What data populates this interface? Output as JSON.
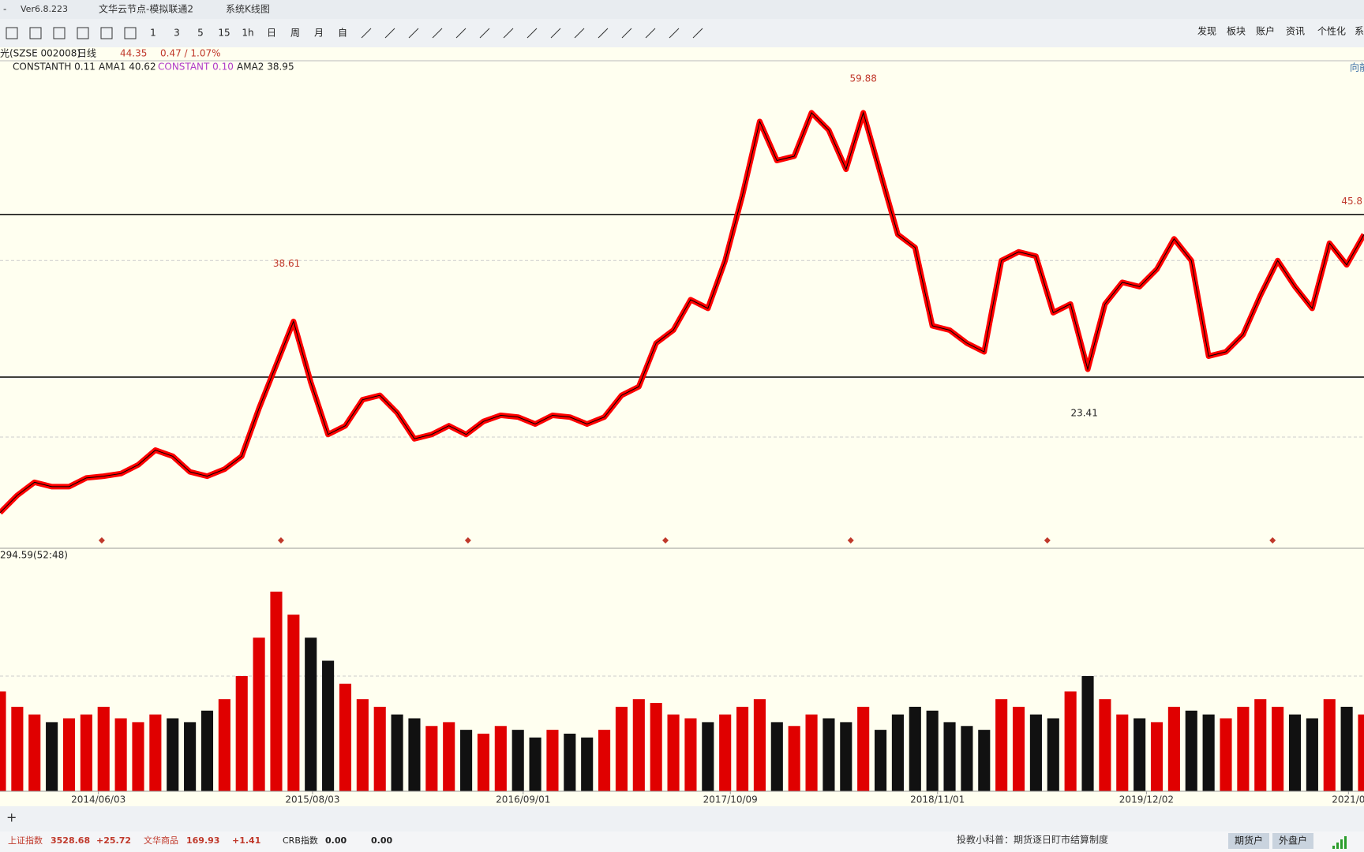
{
  "title_bar": {
    "version": "Ver6.8.223",
    "app_title": "文华云节点-模拟联通2",
    "view": "系统K线图"
  },
  "toolbar": {
    "period_buttons": [
      "1",
      "3",
      "5",
      "15",
      "1h",
      "日",
      "周",
      "月",
      "自"
    ],
    "menu": [
      "发现",
      "板块",
      "账户",
      "资讯",
      "个性化",
      "系"
    ]
  },
  "quote_bar": {
    "symbol": "光(SZSE 002008)",
    "period": "日线",
    "price": "44.35",
    "change": "0.47 / 1.07%"
  },
  "indicators": [
    "CONSTANTH 0.11",
    "AMA1 40.62",
    "CONSTANT 0.10",
    "AMA2 38.95"
  ],
  "nav": "向前",
  "chart_data": [
    {
      "type": "line",
      "color": "#ff0000",
      "values": [
        10.9,
        12.9,
        14.4,
        13.9,
        13.9,
        14.9,
        15.1,
        15.4,
        16.4,
        18.1,
        17.4,
        15.6,
        15.1,
        15.9,
        17.4,
        22.9,
        27.9,
        32.9,
        25.9,
        19.9,
        20.9,
        23.9,
        24.4,
        22.4,
        19.4,
        19.9,
        20.9,
        19.9,
        21.4,
        22.1,
        21.9,
        21.1,
        22.1,
        21.9,
        21.1,
        21.9,
        24.4,
        25.4,
        30.4,
        31.9,
        35.4,
        34.4,
        39.9,
        47.4,
        55.9,
        51.4,
        51.9,
        56.9,
        54.9,
        50.4,
        56.9,
        49.9,
        42.9,
        41.4,
        32.4,
        31.9,
        30.4,
        29.4,
        39.9,
        40.9,
        40.4,
        33.9,
        34.9,
        27.4,
        34.9,
        37.4,
        36.9,
        38.9,
        42.4,
        39.9,
        28.9,
        29.4,
        31.4,
        35.9,
        39.9,
        36.9,
        34.4,
        41.9,
        39.4,
        42.9
      ],
      "xlim": [
        0,
        79
      ],
      "xticks": [
        {
          "value": 5.7,
          "label": "2014/06/03"
        },
        {
          "value": 18.1,
          "label": "2015/08/03"
        },
        {
          "value": 30.3,
          "label": "2016/09/01"
        },
        {
          "value": 42.3,
          "label": "2017/10/09"
        },
        {
          "value": 54.3,
          "label": "2018/11/01"
        },
        {
          "value": 66.4,
          "label": "2019/12/02"
        },
        {
          "value": 78.1,
          "label": "2021/0"
        }
      ],
      "ylim": [
        6.9,
        62.7
      ],
      "hlines": [
        45.2,
        26.5
      ],
      "grid_lines": [
        39.9,
        19.6
      ],
      "annotations": [
        {
          "x": 50,
          "value": 59.88,
          "color": "#c0392b"
        },
        {
          "x": 16.6,
          "value": 38.61,
          "color": "#c0392b"
        },
        {
          "x": 62.8,
          "value": 23.41,
          "color": "#222222"
        },
        {
          "x": 78.3,
          "value": 45.8,
          "color": "#c0392b"
        }
      ]
    },
    {
      "type": "bar",
      "title": "294.59(52:48)",
      "values": [
        130,
        110,
        100,
        90,
        95,
        100,
        110,
        95,
        90,
        100,
        95,
        90,
        105,
        120,
        150,
        200,
        260,
        230,
        200,
        170,
        140,
        120,
        110,
        100,
        95,
        85,
        90,
        80,
        75,
        85,
        80,
        70,
        80,
        75,
        70,
        80,
        110,
        120,
        115,
        100,
        95,
        90,
        100,
        110,
        120,
        90,
        85,
        100,
        95,
        90,
        110,
        80,
        100,
        110,
        105,
        90,
        85,
        80,
        120,
        110,
        100,
        95,
        130,
        150,
        120,
        100,
        95,
        90,
        110,
        105,
        100,
        95,
        110,
        120,
        110,
        100,
        95,
        120,
        110,
        100
      ],
      "xlim": [
        0,
        79
      ],
      "ylim": [
        0,
        300
      ],
      "grid_lines": [
        150
      ]
    }
  ],
  "status_bar": {
    "indices": [
      {
        "name": "上证指数",
        "value": "3528.68",
        "change": "+25.72"
      },
      {
        "name": "文华商品",
        "value": "169.93",
        "change": "+1.41"
      },
      {
        "name": "CRB指数",
        "value": "0.00",
        "change": "0.00"
      }
    ],
    "tip": "投教小科普：期货逐日盯市结算制度",
    "buttons": [
      "期货户",
      "外盘户"
    ]
  }
}
